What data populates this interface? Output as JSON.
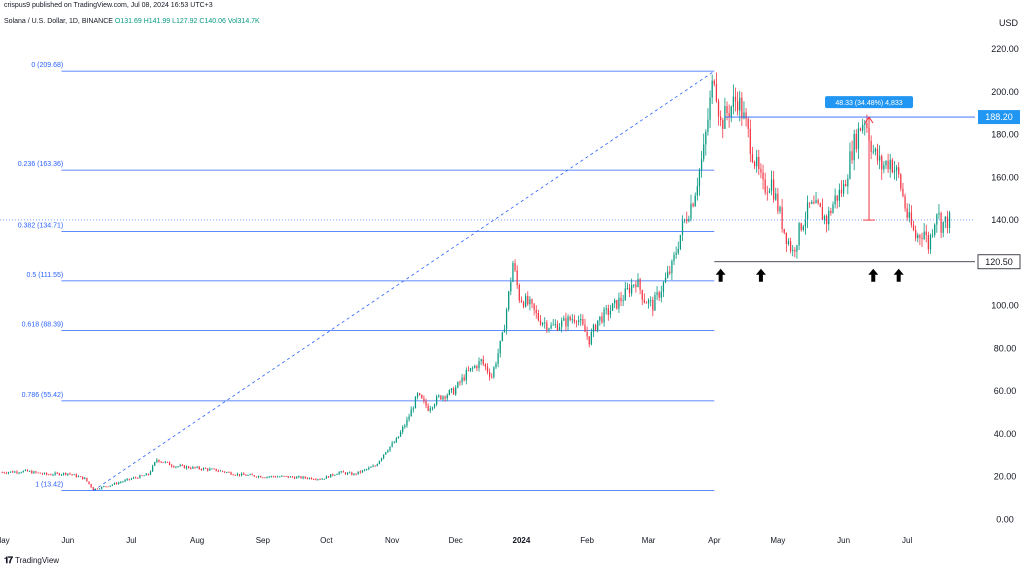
{
  "header": {
    "published_line": "crispus9 published on TradingView.com, Jul 08, 2024 16:53 UTC+3",
    "symbol": "Solana / U.S. Dollar, 1D, BINANCE",
    "ohlc": {
      "open": "O131.69",
      "high": "H141.99",
      "low": "L127.92",
      "close": "C140.06",
      "volume": "Vol314.7K"
    },
    "currency": "USD"
  },
  "footer": {
    "brand": "TradingView"
  },
  "colors": {
    "up": "#089981",
    "down": "#f23645",
    "fib": "#2962ff",
    "annotation": "#2196f3",
    "neutral": "#131722"
  },
  "chart_data": {
    "type": "candlestick",
    "y_axis": {
      "ticks": [
        "220.00",
        "200.00",
        "180.00",
        "160.00",
        "140.00",
        "120.00",
        "100.00",
        "80.00",
        "60.00",
        "40.00",
        "20.00",
        "0.00"
      ],
      "tick_values": [
        220,
        200,
        180,
        160,
        140,
        120,
        100,
        80,
        60,
        40,
        20,
        0
      ],
      "ylim": [
        -5,
        228
      ]
    },
    "x_axis": {
      "ticks": [
        "May",
        "Jun",
        "Jul",
        "Aug",
        "Sep",
        "Oct",
        "Nov",
        "Dec",
        "2024",
        "Feb",
        "Mar",
        "Apr",
        "May",
        "Jun",
        "Jul"
      ],
      "tick_day": [
        -31,
        0,
        30,
        61,
        92,
        122,
        153,
        183,
        214,
        245,
        274,
        305,
        335,
        366,
        396
      ]
    },
    "fib_levels": [
      {
        "label": "0 (209.68)",
        "value": 209.68
      },
      {
        "label": "0.236 (163.36)",
        "value": 163.36
      },
      {
        "label": "0.382 (134.71)",
        "value": 134.71
      },
      {
        "label": "0.5 (111.55)",
        "value": 111.55
      },
      {
        "label": "0.618 (88.39)",
        "value": 88.39
      },
      {
        "label": "0.786 (55.42)",
        "value": 55.42
      },
      {
        "label": "1 (13.42)",
        "value": 13.42
      }
    ],
    "price_labels": [
      {
        "text": "188.20",
        "value": 188.2,
        "style": "blue"
      },
      {
        "text": "120.50",
        "value": 120.5,
        "style": "dark"
      }
    ],
    "measure_label": "48.33 (34.48%) 4,833",
    "support_arrows_day": [
      308,
      327,
      380,
      392
    ],
    "series_close": [
      [
        -31,
        22
      ],
      [
        -20,
        22.5
      ],
      [
        -10,
        21
      ],
      [
        0,
        21.5
      ],
      [
        8,
        19
      ],
      [
        12,
        14
      ],
      [
        20,
        16
      ],
      [
        30,
        19
      ],
      [
        38,
        21
      ],
      [
        42,
        28
      ],
      [
        50,
        25
      ],
      [
        60,
        24
      ],
      [
        70,
        23
      ],
      [
        80,
        21
      ],
      [
        92,
        20
      ],
      [
        100,
        20
      ],
      [
        110,
        19.5
      ],
      [
        120,
        19
      ],
      [
        128,
        22
      ],
      [
        135,
        21
      ],
      [
        145,
        25
      ],
      [
        150,
        32
      ],
      [
        155,
        37
      ],
      [
        160,
        46
      ],
      [
        165,
        58
      ],
      [
        170,
        52
      ],
      [
        175,
        57
      ],
      [
        182,
        60
      ],
      [
        188,
        68
      ],
      [
        195,
        74
      ],
      [
        200,
        67
      ],
      [
        205,
        85
      ],
      [
        208,
        105
      ],
      [
        210,
        120
      ],
      [
        213,
        104
      ],
      [
        218,
        100
      ],
      [
        222,
        94
      ],
      [
        228,
        90
      ],
      [
        234,
        92
      ],
      [
        240,
        95
      ],
      [
        246,
        84
      ],
      [
        250,
        93
      ],
      [
        256,
        98
      ],
      [
        262,
        104
      ],
      [
        268,
        112
      ],
      [
        272,
        103
      ],
      [
        276,
        100
      ],
      [
        280,
        108
      ],
      [
        285,
        118
      ],
      [
        290,
        137
      ],
      [
        295,
        150
      ],
      [
        300,
        172
      ],
      [
        303,
        195
      ],
      [
        305,
        209
      ],
      [
        308,
        185
      ],
      [
        312,
        192
      ],
      [
        316,
        197
      ],
      [
        320,
        184
      ],
      [
        324,
        168
      ],
      [
        328,
        155
      ],
      [
        332,
        158
      ],
      [
        334,
        150
      ],
      [
        338,
        135
      ],
      [
        342,
        125
      ],
      [
        346,
        138
      ],
      [
        350,
        146
      ],
      [
        354,
        145
      ],
      [
        358,
        140
      ],
      [
        362,
        150
      ],
      [
        366,
        155
      ],
      [
        370,
        173
      ],
      [
        374,
        184
      ],
      [
        376,
        188
      ],
      [
        380,
        172
      ],
      [
        384,
        165
      ],
      [
        388,
        168
      ],
      [
        392,
        160
      ],
      [
        396,
        142
      ],
      [
        400,
        132
      ],
      [
        404,
        135
      ],
      [
        406,
        128
      ],
      [
        410,
        145
      ],
      [
        412,
        138
      ],
      [
        416,
        140
      ]
    ]
  }
}
